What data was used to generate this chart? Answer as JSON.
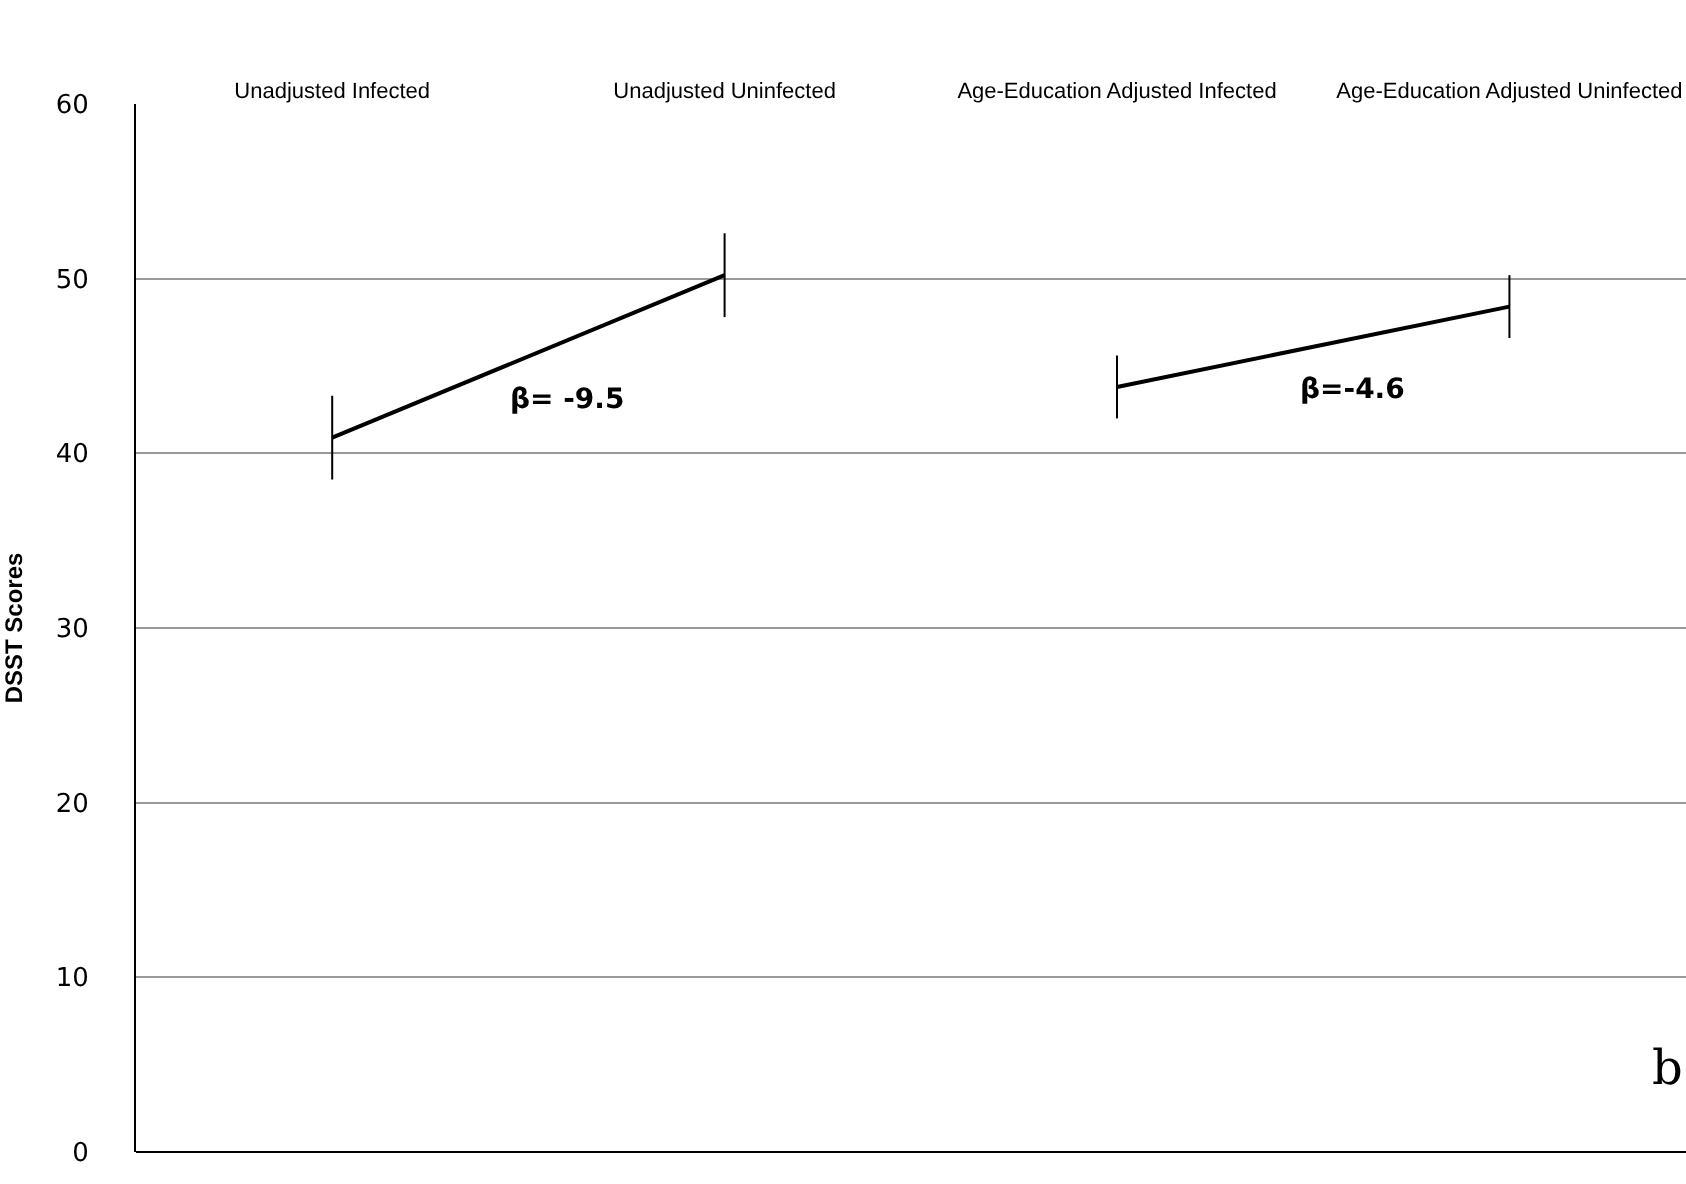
{
  "chart_data": {
    "type": "line",
    "ylabel": "DSST Scores",
    "categories": [
      "Unadjusted Infected",
      "Unadjusted Uninfected",
      "Age-Education Adjusted Infected",
      "Age-Education Adjusted Uninfected"
    ],
    "series": [
      {
        "color": "#000000",
        "values": [
          40.9,
          50.2,
          null,
          null
        ],
        "errors": [
          2.4,
          2.4,
          null,
          null
        ]
      },
      {
        "color": "#000000",
        "values": [
          null,
          null,
          43.8,
          48.4
        ],
        "errors": [
          null,
          null,
          1.8,
          1.8
        ]
      }
    ],
    "annotations": [
      "β= -9.5",
      "β=-4.6",
      "b"
    ],
    "ylim": [
      0,
      60
    ],
    "yticks": [
      0,
      10,
      20,
      30,
      40,
      50,
      60
    ],
    "grid": "y",
    "legend": false,
    "marker": "none",
    "line_style": "solid"
  }
}
